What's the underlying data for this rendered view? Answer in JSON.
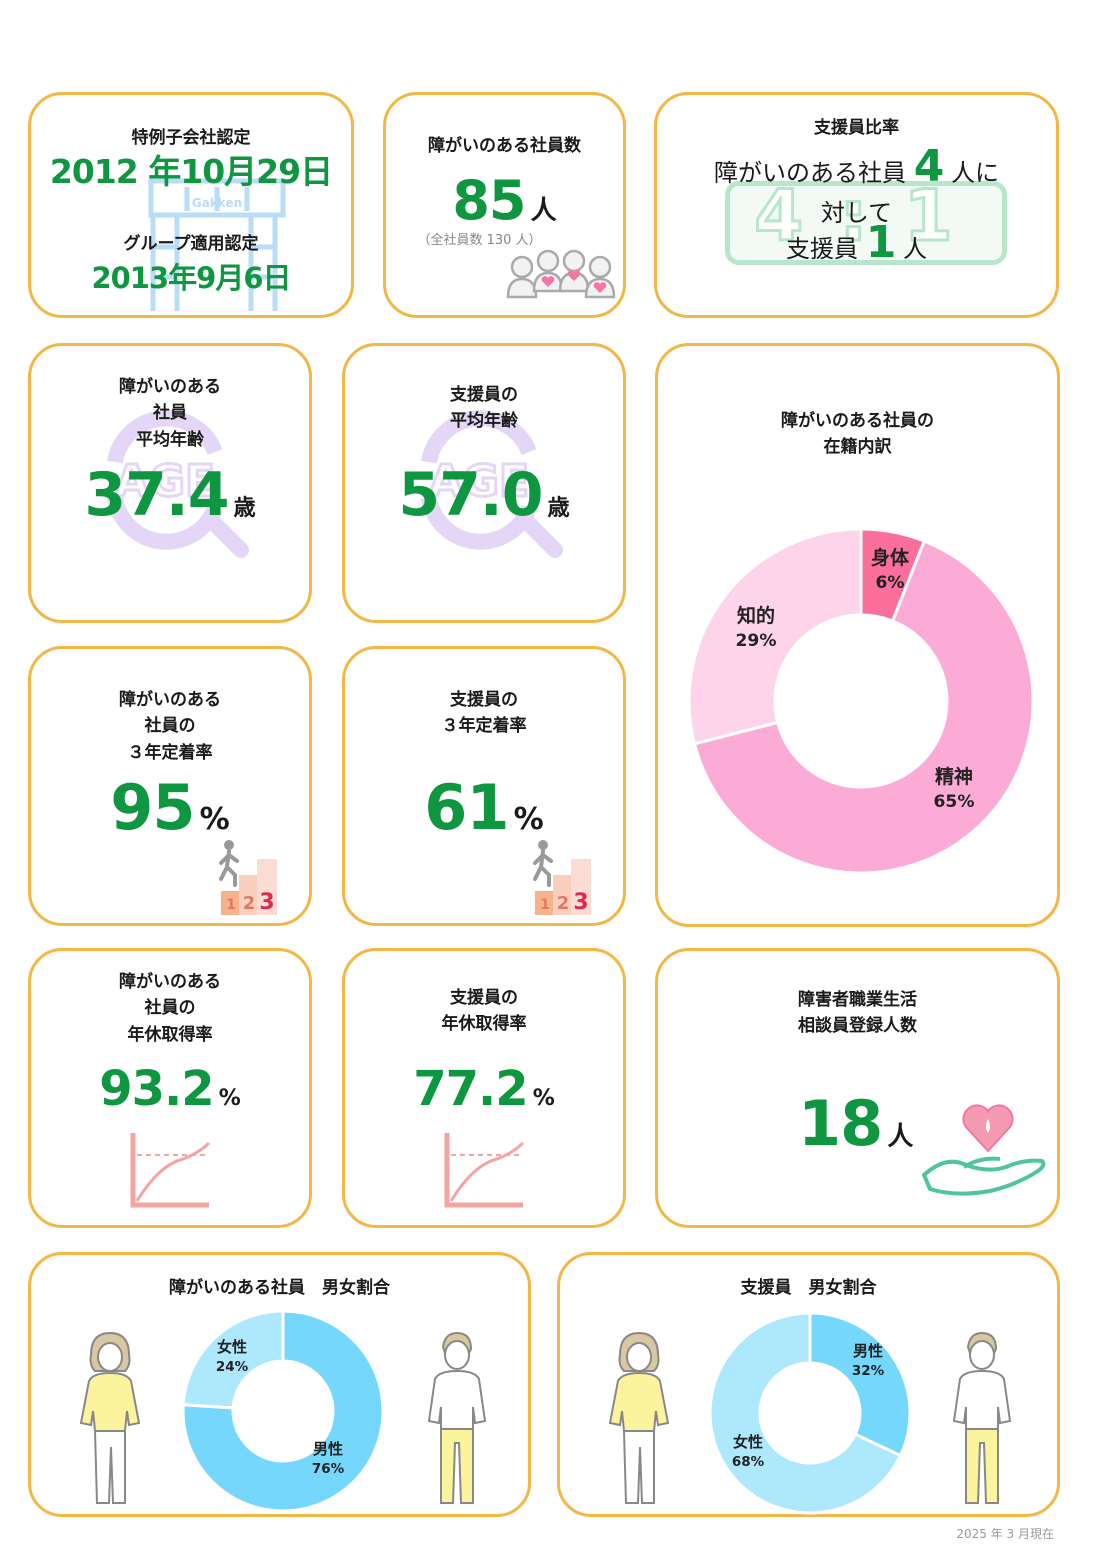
{
  "cards": {
    "certification": {
      "label1": "特例子会社認定",
      "date1": "2012 年10月29日",
      "watermark": "Gakken",
      "label2": "グループ適用認定",
      "date2": "2013年9月6日"
    },
    "employees": {
      "title": "障がいのある社員数",
      "value": "85",
      "unit": "人",
      "note": "（全社員数 130 人）"
    },
    "support_ratio": {
      "title": "支援員比率",
      "line1_pre": "障がいのある社員",
      "line1_num": "4",
      "line1_post": "人に",
      "line2": "対して",
      "line3_pre": "支援員",
      "line3_num": "1",
      "line3_post": "人",
      "bg_text": "4 : 1"
    },
    "avg_age_disabled": {
      "title": "障がいのある\n社員\n平均年齢",
      "value": "37.4",
      "unit": "歳",
      "watermark": "AGE"
    },
    "avg_age_support": {
      "title": "支援員の\n平均年齢",
      "value": "57.0",
      "unit": "歳",
      "watermark": "AGE"
    },
    "retention_disabled": {
      "title": "障がいのある\n社員の\n３年定着率",
      "value": "95",
      "unit": "%"
    },
    "retention_support": {
      "title": "支援員の\n３年定着率",
      "value": "61",
      "unit": "%"
    },
    "leave_disabled": {
      "title": "障がいのある\n社員の\n年休取得率",
      "value": "93.2",
      "unit": "%"
    },
    "leave_support": {
      "title": "支援員の\n年休取得率",
      "value": "77.2",
      "unit": "%"
    },
    "counselors": {
      "title": "障害者職業生活\n相談員登録人数",
      "value": "18",
      "unit": "人"
    },
    "breakdown": {
      "title": "障がいのある社員の\n在籍内訳"
    },
    "gender_disabled": {
      "title": "障がいのある社員　男女割合"
    },
    "gender_support": {
      "title": "支援員　男女割合"
    }
  },
  "stairs_digits": [
    "1",
    "2",
    "3"
  ],
  "colors": {
    "border": "#f2b744",
    "green": "#0f9640",
    "pink_dark": "#fb6f9c",
    "pink_mid": "#fcaad6",
    "pink_light": "#fdd4ea",
    "blue_dark": "#74d7fb",
    "blue_light": "#aee8fd"
  },
  "chart_data": [
    {
      "type": "pie",
      "title": "障がいのある社員の在籍内訳",
      "slices": [
        {
          "label": "身体",
          "value": 6,
          "display": "6%"
        },
        {
          "label": "精神",
          "value": 65,
          "display": "65%"
        },
        {
          "label": "知的",
          "value": 29,
          "display": "29%"
        }
      ]
    },
    {
      "type": "pie",
      "title": "障がいのある社員　男女割合",
      "slices": [
        {
          "label": "男性",
          "value": 76,
          "display": "76%"
        },
        {
          "label": "女性",
          "value": 24,
          "display": "24%"
        }
      ]
    },
    {
      "type": "pie",
      "title": "支援員　男女割合",
      "slices": [
        {
          "label": "男性",
          "value": 32,
          "display": "32%"
        },
        {
          "label": "女性",
          "value": 68,
          "display": "68%"
        }
      ]
    }
  ],
  "footer": "2025 年 3 月現在"
}
